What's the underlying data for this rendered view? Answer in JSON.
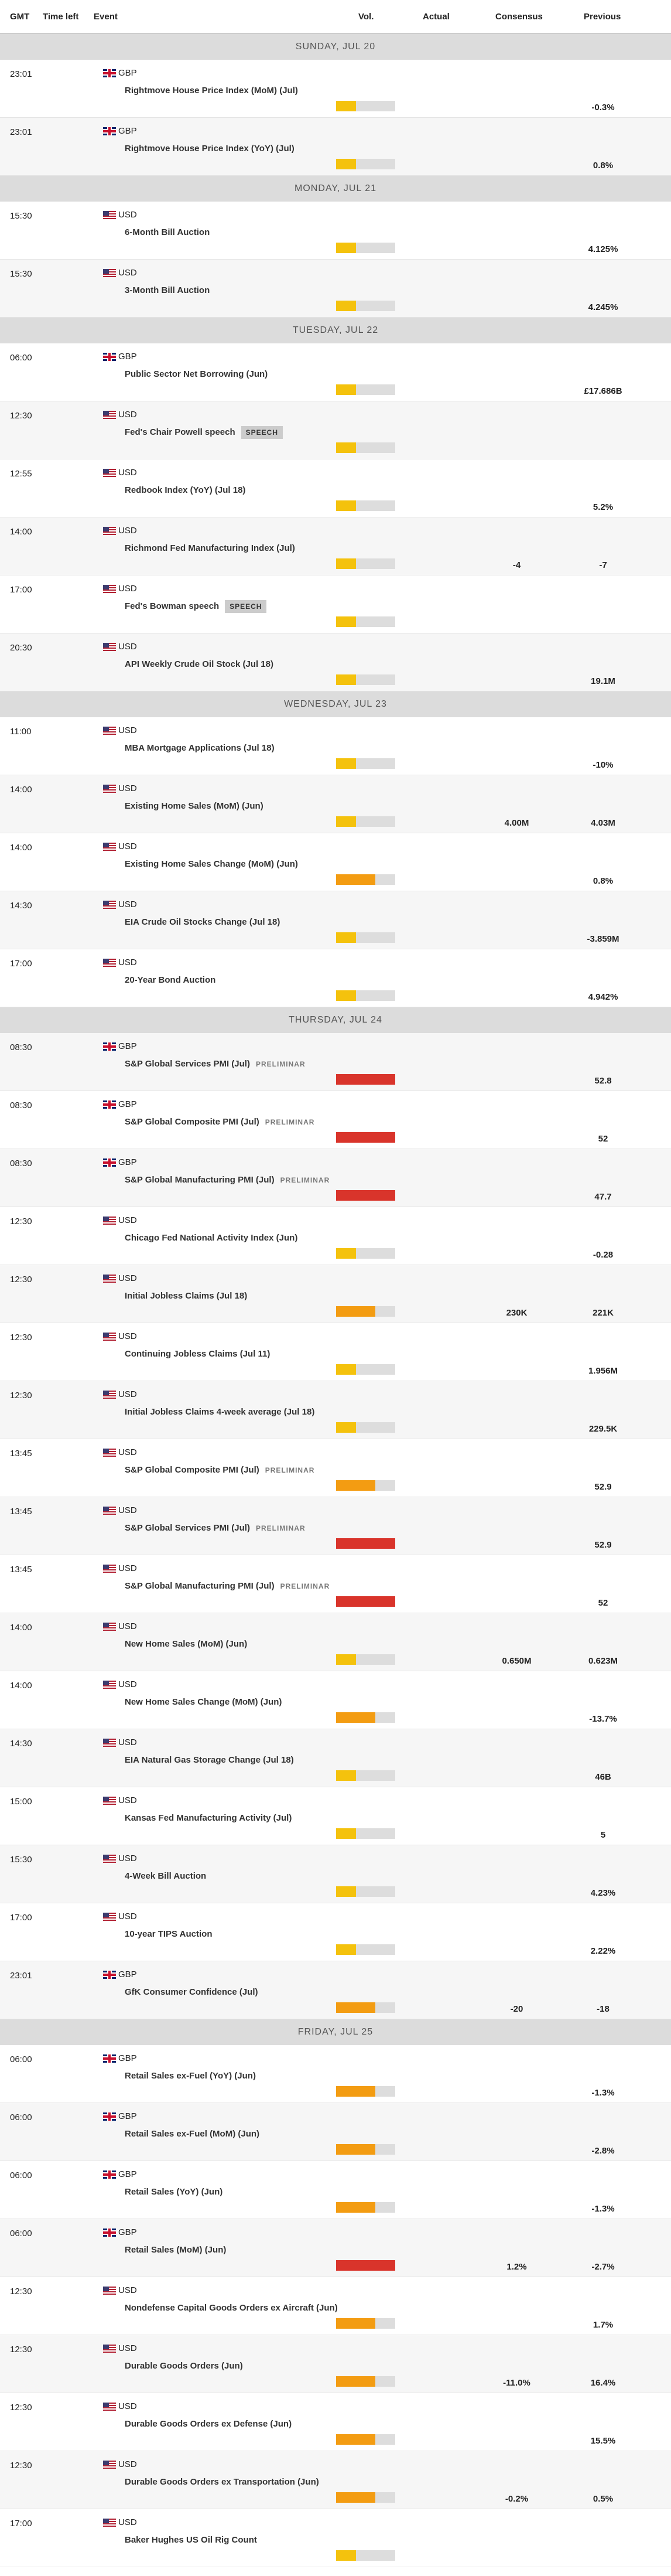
{
  "header": {
    "columns": [
      "GMT",
      "Time left",
      "Event",
      "Vol.",
      "Actual",
      "Consensus",
      "Previous"
    ]
  },
  "vol_colors": [
    "#f4c20d",
    "#f39c12",
    "#d9342b"
  ],
  "days": [
    {
      "label": "SUNDAY, JUL 20",
      "events": [
        {
          "time": "23:01",
          "currency": "GBP",
          "name": "Rightmove House Price Index (MoM) (Jul)",
          "vol": 1,
          "previous": "-0.3%"
        },
        {
          "time": "23:01",
          "currency": "GBP",
          "name": "Rightmove House Price Index (YoY) (Jul)",
          "vol": 1,
          "previous": "0.8%"
        }
      ]
    },
    {
      "label": "MONDAY, JUL 21",
      "events": [
        {
          "time": "15:30",
          "currency": "USD",
          "name": "6-Month Bill Auction",
          "vol": 1,
          "previous": "4.125%"
        },
        {
          "time": "15:30",
          "currency": "USD",
          "name": "3-Month Bill Auction",
          "vol": 1,
          "previous": "4.245%"
        }
      ]
    },
    {
      "label": "TUESDAY, JUL 22",
      "events": [
        {
          "time": "06:00",
          "currency": "GBP",
          "name": "Public Sector Net Borrowing (Jun)",
          "vol": 1,
          "previous": "£17.686B"
        },
        {
          "time": "12:30",
          "currency": "USD",
          "name": "Fed's Chair Powell speech",
          "badge": "SPEECH",
          "vol": 1
        },
        {
          "time": "12:55",
          "currency": "USD",
          "name": "Redbook Index (YoY) (Jul 18)",
          "vol": 1,
          "previous": "5.2%"
        },
        {
          "time": "14:00",
          "currency": "USD",
          "name": "Richmond Fed Manufacturing Index (Jul)",
          "vol": 1,
          "consensus": "-4",
          "previous": "-7"
        },
        {
          "time": "17:00",
          "currency": "USD",
          "name": "Fed's Bowman speech",
          "badge": "SPEECH",
          "vol": 1
        },
        {
          "time": "20:30",
          "currency": "USD",
          "name": "API Weekly Crude Oil Stock (Jul 18)",
          "vol": 1,
          "previous": "19.1M"
        }
      ]
    },
    {
      "label": "WEDNESDAY, JUL 23",
      "events": [
        {
          "time": "11:00",
          "currency": "USD",
          "name": "MBA Mortgage Applications (Jul 18)",
          "vol": 1,
          "previous": "-10%"
        },
        {
          "time": "14:00",
          "currency": "USD",
          "name": "Existing Home Sales (MoM) (Jun)",
          "vol": 1,
          "consensus": "4.00M",
          "previous": "4.03M"
        },
        {
          "time": "14:00",
          "currency": "USD",
          "name": "Existing Home Sales Change (MoM) (Jun)",
          "vol": 2,
          "previous": "0.8%"
        },
        {
          "time": "14:30",
          "currency": "USD",
          "name": "EIA Crude Oil Stocks Change (Jul 18)",
          "vol": 1,
          "previous": "-3.859M"
        },
        {
          "time": "17:00",
          "currency": "USD",
          "name": "20-Year Bond Auction",
          "vol": 1,
          "previous": "4.942%"
        }
      ]
    },
    {
      "label": "THURSDAY, JUL 24",
      "events": [
        {
          "time": "08:30",
          "currency": "GBP",
          "name": "S&P Global Services PMI (Jul)",
          "note": "PRELIMINAR",
          "vol": 3,
          "previous": "52.8"
        },
        {
          "time": "08:30",
          "currency": "GBP",
          "name": "S&P Global Composite PMI (Jul)",
          "note": "PRELIMINAR",
          "vol": 3,
          "previous": "52"
        },
        {
          "time": "08:30",
          "currency": "GBP",
          "name": "S&P Global Manufacturing PMI (Jul)",
          "note": "PRELIMINAR",
          "vol": 3,
          "previous": "47.7"
        },
        {
          "time": "12:30",
          "currency": "USD",
          "name": "Chicago Fed National Activity Index (Jun)",
          "vol": 1,
          "previous": "-0.28"
        },
        {
          "time": "12:30",
          "currency": "USD",
          "name": "Initial Jobless Claims (Jul 18)",
          "vol": 2,
          "consensus": "230K",
          "previous": "221K"
        },
        {
          "time": "12:30",
          "currency": "USD",
          "name": "Continuing Jobless Claims (Jul 11)",
          "vol": 1,
          "previous": "1.956M"
        },
        {
          "time": "12:30",
          "currency": "USD",
          "name": "Initial Jobless Claims 4-week average (Jul 18)",
          "vol": 1,
          "previous": "229.5K"
        },
        {
          "time": "13:45",
          "currency": "USD",
          "name": "S&P Global Composite PMI (Jul)",
          "note": "PRELIMINAR",
          "vol": 2,
          "previous": "52.9"
        },
        {
          "time": "13:45",
          "currency": "USD",
          "name": "S&P Global Services PMI (Jul)",
          "note": "PRELIMINAR",
          "vol": 3,
          "previous": "52.9"
        },
        {
          "time": "13:45",
          "currency": "USD",
          "name": "S&P Global Manufacturing PMI (Jul)",
          "note": "PRELIMINAR",
          "vol": 3,
          "previous": "52"
        },
        {
          "time": "14:00",
          "currency": "USD",
          "name": "New Home Sales (MoM) (Jun)",
          "vol": 1,
          "consensus": "0.650M",
          "previous": "0.623M"
        },
        {
          "time": "14:00",
          "currency": "USD",
          "name": "New Home Sales Change (MoM) (Jun)",
          "vol": 2,
          "previous": "-13.7%"
        },
        {
          "time": "14:30",
          "currency": "USD",
          "name": "EIA Natural Gas Storage Change (Jul 18)",
          "vol": 1,
          "previous": "46B"
        },
        {
          "time": "15:00",
          "currency": "USD",
          "name": "Kansas Fed Manufacturing Activity (Jul)",
          "vol": 1,
          "previous": "5"
        },
        {
          "time": "15:30",
          "currency": "USD",
          "name": "4-Week Bill Auction",
          "vol": 1,
          "previous": "4.23%"
        },
        {
          "time": "17:00",
          "currency": "USD",
          "name": "10-year TIPS Auction",
          "vol": 1,
          "previous": "2.22%"
        },
        {
          "time": "23:01",
          "currency": "GBP",
          "name": "GfK Consumer Confidence (Jul)",
          "vol": 2,
          "consensus": "-20",
          "previous": "-18"
        }
      ]
    },
    {
      "label": "FRIDAY, JUL 25",
      "events": [
        {
          "time": "06:00",
          "currency": "GBP",
          "name": "Retail Sales ex-Fuel (YoY) (Jun)",
          "vol": 2,
          "previous": "-1.3%"
        },
        {
          "time": "06:00",
          "currency": "GBP",
          "name": "Retail Sales ex-Fuel (MoM) (Jun)",
          "vol": 2,
          "previous": "-2.8%"
        },
        {
          "time": "06:00",
          "currency": "GBP",
          "name": "Retail Sales (YoY) (Jun)",
          "vol": 2,
          "previous": "-1.3%"
        },
        {
          "time": "06:00",
          "currency": "GBP",
          "name": "Retail Sales (MoM) (Jun)",
          "vol": 3,
          "consensus": "1.2%",
          "previous": "-2.7%"
        },
        {
          "time": "12:30",
          "currency": "USD",
          "name": "Nondefense Capital Goods Orders ex Aircraft (Jun)",
          "vol": 2,
          "previous": "1.7%"
        },
        {
          "time": "12:30",
          "currency": "USD",
          "name": "Durable Goods Orders (Jun)",
          "vol": 2,
          "consensus": "-11.0%",
          "previous": "16.4%"
        },
        {
          "time": "12:30",
          "currency": "USD",
          "name": "Durable Goods Orders ex Defense (Jun)",
          "vol": 2,
          "previous": "15.5%"
        },
        {
          "time": "12:30",
          "currency": "USD",
          "name": "Durable Goods Orders ex Transportation (Jun)",
          "vol": 2,
          "consensus": "-0.2%",
          "previous": "0.5%"
        },
        {
          "time": "17:00",
          "currency": "USD",
          "name": "Baker Hughes US Oil Rig Count",
          "vol": 1
        }
      ]
    }
  ]
}
